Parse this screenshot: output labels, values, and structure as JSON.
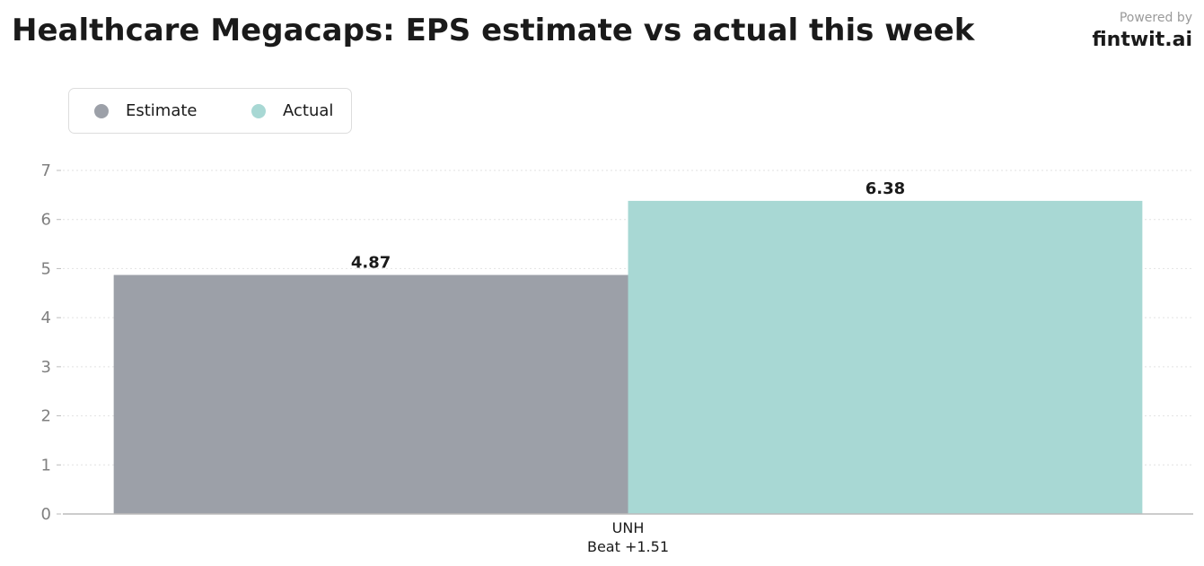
{
  "header": {
    "title": "Healthcare Megacaps: EPS estimate vs actual this week",
    "powered_by": "Powered by",
    "brand": "fintwit.ai"
  },
  "chart_data": {
    "type": "bar",
    "title": "Healthcare Megacaps: EPS estimate vs actual this week",
    "categories": [
      "UNH"
    ],
    "category_sublabels": [
      "Beat +1.51"
    ],
    "series": [
      {
        "name": "Estimate",
        "values": [
          4.87
        ],
        "color": "#9ca0a8"
      },
      {
        "name": "Actual",
        "values": [
          6.38
        ],
        "color": "#a8d8d4"
      }
    ],
    "data_labels": [
      "4.87",
      "6.38"
    ],
    "xlabel": "",
    "ylabel": "",
    "ylim": [
      0,
      7
    ],
    "yticks": [
      0,
      1,
      2,
      3,
      4,
      5,
      6,
      7
    ],
    "grid": true,
    "legend_position": "top-left"
  }
}
